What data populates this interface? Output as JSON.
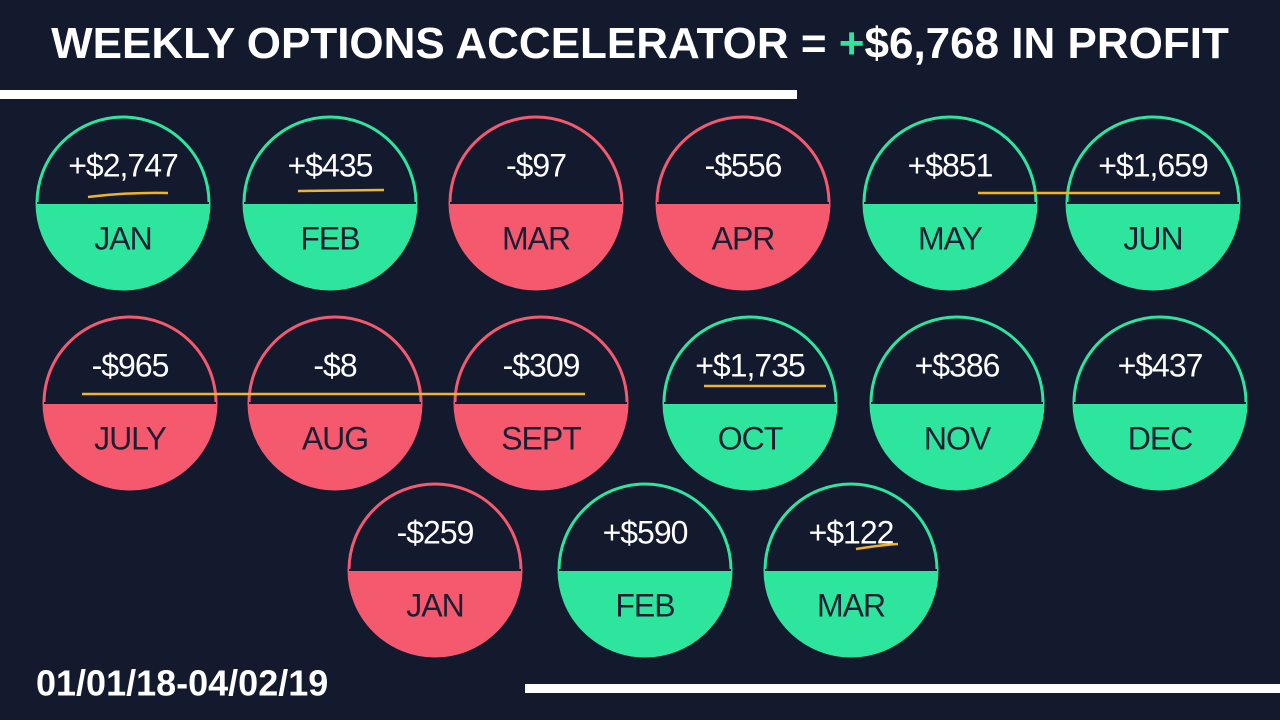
{
  "header": {
    "title": "WEEKLY OPTIONS ACCELERATOR =",
    "title_plus": "+",
    "title_amount": "$6,768 IN PROFIT"
  },
  "rows": [
    [
      {
        "value": "+$2,747",
        "month": "JAN",
        "color": "#2ee59d"
      },
      {
        "value": "+$435",
        "month": "FEB",
        "color": "#2ee59d"
      },
      {
        "value": "-$97",
        "month": "MAR",
        "color": "#f5596e"
      },
      {
        "value": "-$556",
        "month": "APR",
        "color": "#f5596e"
      },
      {
        "value": "+$851",
        "month": "MAY",
        "color": "#2ee59d"
      },
      {
        "value": "+$1,659",
        "month": "JUN",
        "color": "#2ee59d"
      }
    ],
    [
      {
        "value": "-$965",
        "month": "JULY",
        "color": "#f5596e"
      },
      {
        "value": "-$8",
        "month": "AUG",
        "color": "#f5596e"
      },
      {
        "value": "-$309",
        "month": "SEPT",
        "color": "#f5596e"
      },
      {
        "value": "+$1,735",
        "month": "OCT",
        "color": "#2ee59d"
      },
      {
        "value": "+$386",
        "month": "NOV",
        "color": "#2ee59d"
      },
      {
        "value": "+$437",
        "month": "DEC",
        "color": "#2ee59d"
      }
    ],
    [
      {
        "value": "-$259",
        "month": "JAN",
        "color": "#f5596e"
      },
      {
        "value": "+$590",
        "month": "FEB",
        "color": "#2ee59d"
      },
      {
        "value": "+$122",
        "month": "MAR",
        "color": "#2ee59d"
      }
    ]
  ],
  "footer": {
    "date_range": "01/01/18-04/02/19"
  }
}
